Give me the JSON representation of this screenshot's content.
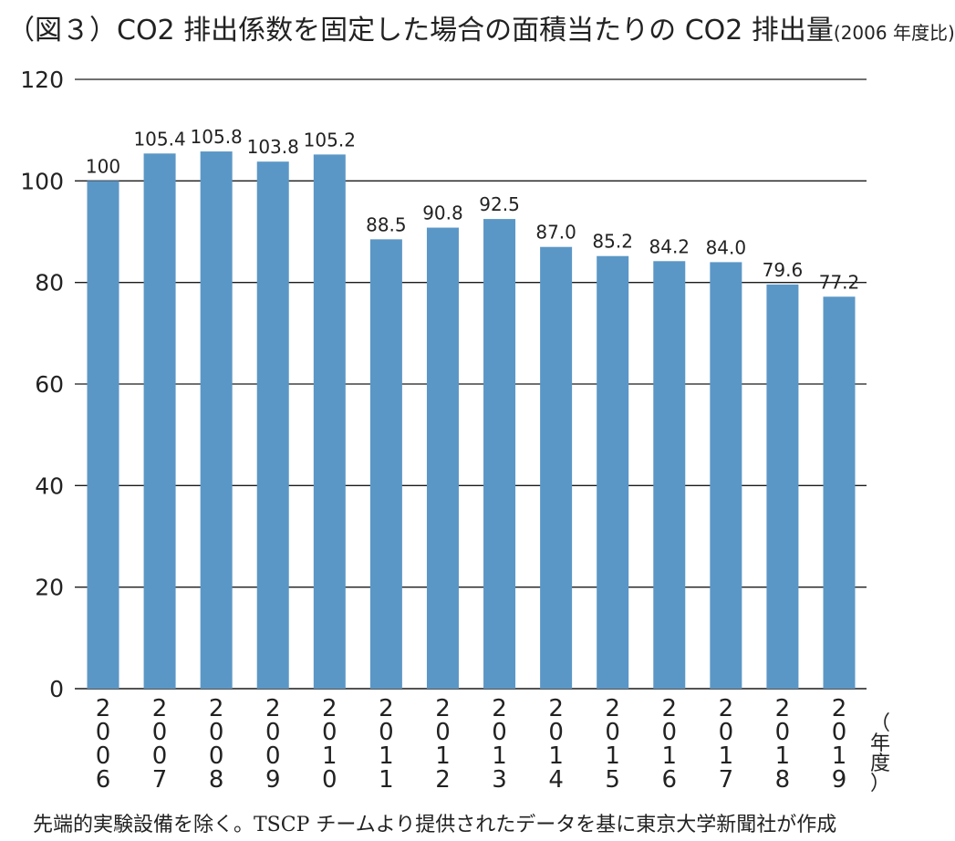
{
  "title": "（図３）CO2 排出係数を固定した場合の面積当たりの CO2 排出量",
  "subtitle": "(2006 年度比)",
  "source": "先端的実験設備を除く。TSCP チームより提供されたデータを基に東京大学新聞社が作成",
  "chart_data": {
    "type": "bar",
    "title": "（図３）CO2 排出係数を固定した場合の面積当たりの CO2 排出量",
    "subtitle": "(2006 年度比)",
    "xlabel": "（年度）",
    "ylabel": "",
    "categories": [
      "2006",
      "2007",
      "2008",
      "2009",
      "2010",
      "2011",
      "2012",
      "2013",
      "2014",
      "2015",
      "2016",
      "2017",
      "2018",
      "2019"
    ],
    "values": [
      100,
      105.4,
      105.8,
      103.8,
      105.2,
      88.5,
      90.8,
      92.5,
      87.0,
      85.2,
      84.2,
      84.0,
      79.6,
      77.2
    ],
    "value_labels": [
      "100",
      "105.4",
      "105.8",
      "103.8",
      "105.2",
      "88.5",
      "90.8",
      "92.5",
      "87.0",
      "85.2",
      "84.2",
      "84.0",
      "79.6",
      "77.2"
    ],
    "yticks": [
      "0",
      "20",
      "40",
      "60",
      "80",
      "100",
      "120"
    ],
    "ylim": [
      0,
      120
    ],
    "grid": true,
    "bar_color": "#5b97c6"
  }
}
